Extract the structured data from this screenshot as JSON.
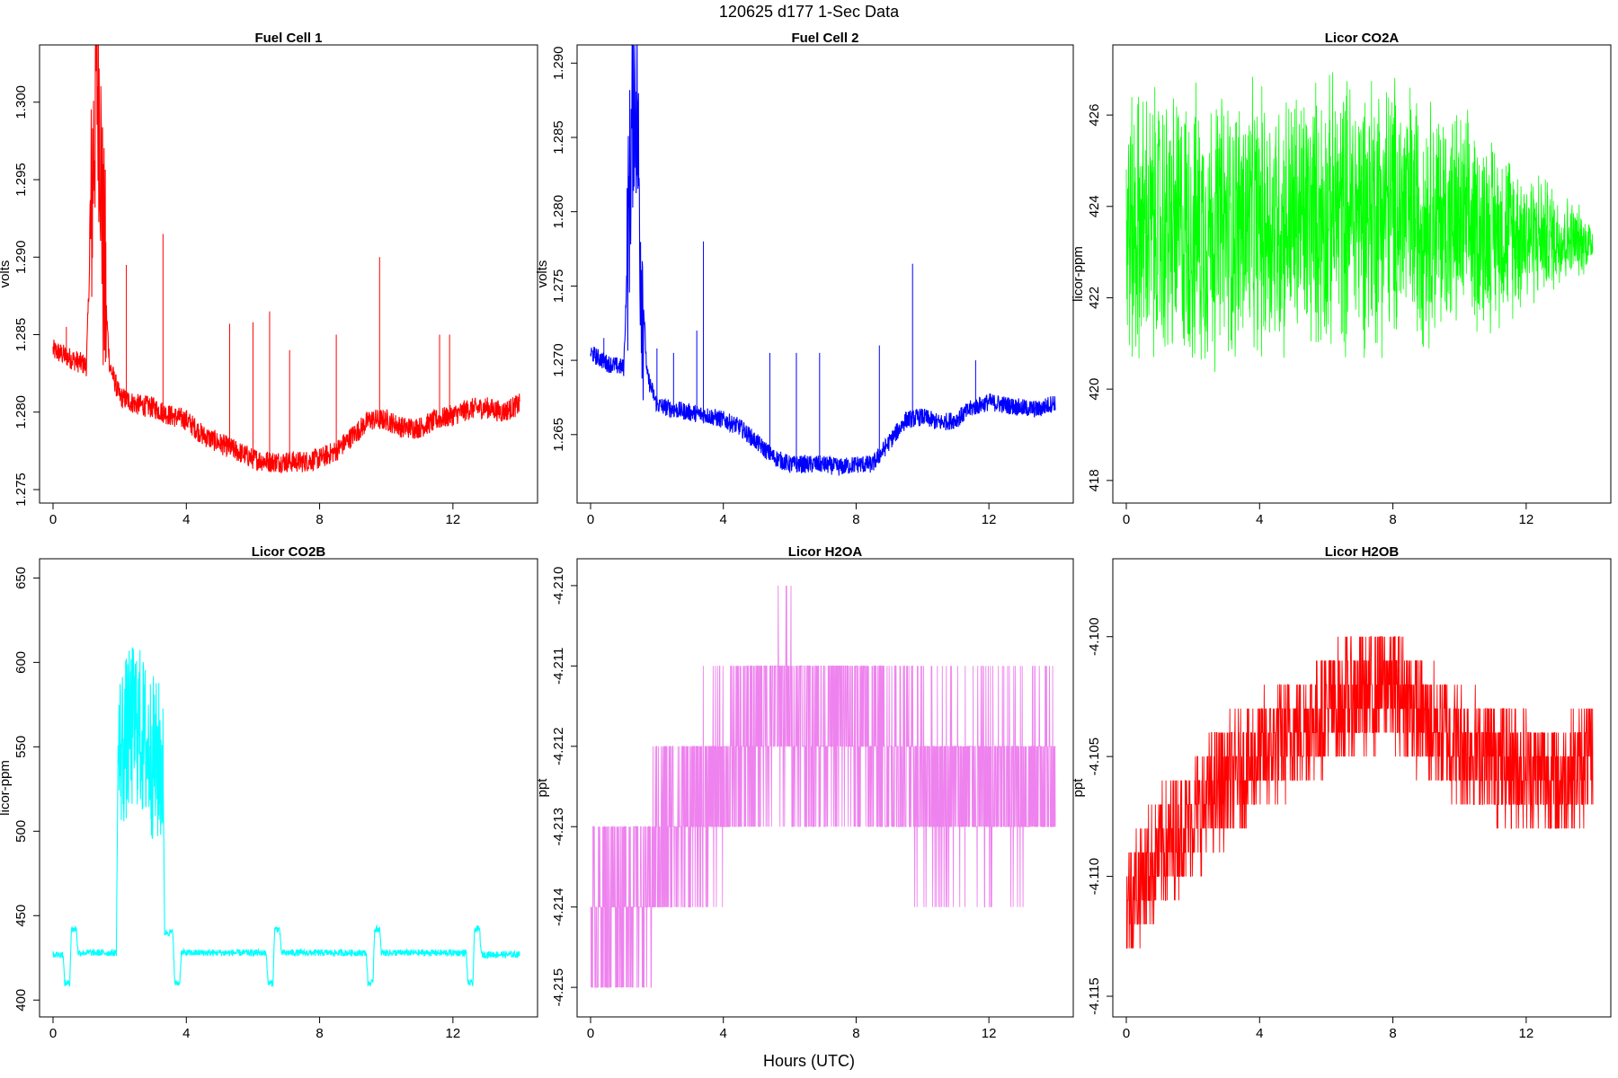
{
  "figure": {
    "title": "120625   d177   1-Sec Data",
    "xlabel": "Hours (UTC)"
  },
  "chart_data": [
    {
      "type": "line",
      "title": "Fuel Cell 1",
      "xlabel": "",
      "ylabel": "volts",
      "color": "#ff0000",
      "xlim": [
        0,
        14
      ],
      "ylim": [
        1.275,
        1.303
      ],
      "xticks": [
        0,
        4,
        8,
        12
      ],
      "yticks": [
        1.275,
        1.28,
        1.285,
        1.29,
        1.295,
        1.3
      ],
      "ytick_labels": [
        "1.275",
        "1.280",
        "1.285",
        "1.290",
        "1.295",
        "1.300"
      ],
      "series": [
        {
          "x": [
            0,
            0.5,
            1.0,
            1.2,
            1.3,
            1.4,
            1.5,
            1.7,
            2.0,
            2.5,
            3.0,
            3.5,
            4.0,
            4.5,
            5.0,
            5.5,
            6.0,
            6.5,
            7.0,
            7.5,
            8.0,
            8.5,
            9.0,
            9.5,
            10.0,
            10.5,
            11.0,
            11.5,
            12.0,
            12.5,
            13.0,
            13.5,
            14.0
          ],
          "y": [
            1.284,
            1.2835,
            1.283,
            1.296,
            1.302,
            1.3,
            1.29,
            1.283,
            1.281,
            1.2805,
            1.2803,
            1.2798,
            1.2795,
            1.2785,
            1.278,
            1.2775,
            1.277,
            1.2768,
            1.2768,
            1.2768,
            1.277,
            1.2775,
            1.2785,
            1.2795,
            1.2795,
            1.279,
            1.279,
            1.2795,
            1.2798,
            1.2802,
            1.2803,
            1.28,
            1.2805
          ],
          "noise": 0.0007
        }
      ],
      "spikes": [
        {
          "x": 0.4,
          "y": 1.2855
        },
        {
          "x": 2.2,
          "y": 1.2895
        },
        {
          "x": 3.3,
          "y": 1.2915
        },
        {
          "x": 5.3,
          "y": 1.2857
        },
        {
          "x": 6.0,
          "y": 1.2858
        },
        {
          "x": 6.5,
          "y": 1.2865
        },
        {
          "x": 7.1,
          "y": 1.284
        },
        {
          "x": 8.5,
          "y": 1.285
        },
        {
          "x": 9.8,
          "y": 1.29
        },
        {
          "x": 11.6,
          "y": 1.285
        },
        {
          "x": 11.9,
          "y": 1.285
        }
      ]
    },
    {
      "type": "line",
      "title": "Fuel Cell 2",
      "xlabel": "",
      "ylabel": "volts",
      "color": "#0000ff",
      "xlim": [
        0,
        14
      ],
      "ylim": [
        1.2613,
        1.2905
      ],
      "xticks": [
        0,
        4,
        8,
        12
      ],
      "yticks": [
        1.265,
        1.27,
        1.275,
        1.28,
        1.285,
        1.29
      ],
      "ytick_labels": [
        "1.265",
        "1.270",
        "1.275",
        "1.280",
        "1.285",
        "1.290"
      ],
      "series": [
        {
          "x": [
            0,
            0.5,
            1.0,
            1.2,
            1.3,
            1.4,
            1.5,
            1.7,
            2.0,
            2.5,
            3.0,
            3.5,
            4.0,
            4.5,
            5.0,
            5.5,
            6.0,
            6.5,
            7.0,
            7.5,
            8.0,
            8.5,
            9.0,
            9.5,
            10.0,
            10.5,
            11.0,
            11.5,
            12.0,
            12.5,
            13.0,
            13.5,
            14.0
          ],
          "y": [
            1.2705,
            1.2698,
            1.2695,
            1.283,
            1.2885,
            1.287,
            1.278,
            1.269,
            1.267,
            1.2667,
            1.2665,
            1.2663,
            1.266,
            1.2655,
            1.2645,
            1.2635,
            1.263,
            1.263,
            1.263,
            1.2628,
            1.263,
            1.263,
            1.2645,
            1.266,
            1.2662,
            1.2658,
            1.266,
            1.2668,
            1.2672,
            1.267,
            1.2668,
            1.2667,
            1.2672
          ],
          "noise": 0.0006
        }
      ],
      "spikes": [
        {
          "x": 0.4,
          "y": 1.2715
        },
        {
          "x": 2.0,
          "y": 1.2708
        },
        {
          "x": 2.5,
          "y": 1.2705
        },
        {
          "x": 3.2,
          "y": 1.272
        },
        {
          "x": 3.4,
          "y": 1.278
        },
        {
          "x": 5.4,
          "y": 1.2705
        },
        {
          "x": 6.2,
          "y": 1.2705
        },
        {
          "x": 6.9,
          "y": 1.2705
        },
        {
          "x": 8.7,
          "y": 1.271
        },
        {
          "x": 9.7,
          "y": 1.2765
        },
        {
          "x": 11.6,
          "y": 1.27
        }
      ]
    },
    {
      "type": "line",
      "title": "Licor CO2A",
      "xlabel": "",
      "ylabel": "licor-ppm",
      "color": "#00ff00",
      "xlim": [
        0,
        14
      ],
      "ylim": [
        417.8,
        427.3
      ],
      "xticks": [
        0,
        4,
        8,
        12
      ],
      "yticks": [
        418,
        420,
        422,
        424,
        426
      ],
      "ytick_labels": [
        "418",
        "420",
        "422",
        "424",
        "426"
      ],
      "series": [
        {
          "x": [
            0,
            2,
            4,
            6,
            7.5,
            9,
            10,
            11,
            12,
            13,
            14
          ],
          "y": [
            423.5,
            423.5,
            423.6,
            423.8,
            424.0,
            423.8,
            423.6,
            423.5,
            423.4,
            423.3,
            423.2
          ],
          "spread": [
            5.0,
            5.0,
            4.8,
            4.8,
            5.0,
            4.5,
            4.0,
            3.4,
            2.6,
            1.8,
            0.9
          ]
        }
      ]
    },
    {
      "type": "line",
      "title": "Licor CO2B",
      "xlabel": "",
      "ylabel": "licor-ppm",
      "color": "#00ffff",
      "xlim": [
        0,
        14
      ],
      "ylim": [
        398,
        655
      ],
      "xticks": [
        0,
        4,
        8,
        12
      ],
      "yticks": [
        400,
        450,
        500,
        550,
        600,
        650
      ],
      "ytick_labels": [
        "400",
        "450",
        "500",
        "550",
        "600",
        "650"
      ],
      "series": [
        {
          "x": [
            0,
            0.3,
            0.35,
            0.5,
            0.55,
            0.7,
            0.75,
            1.9,
            1.95,
            2.2,
            2.5,
            2.8,
            3.1,
            3.3,
            3.35,
            3.6,
            3.65,
            3.8,
            3.85,
            6.4,
            6.45,
            6.6,
            6.65,
            6.8,
            6.85,
            9.4,
            9.45,
            9.6,
            9.65,
            9.8,
            9.85,
            12.4,
            12.45,
            12.6,
            12.65,
            12.8,
            12.85,
            14.0
          ],
          "y": [
            427,
            427,
            410,
            410,
            442,
            442,
            428,
            428,
            545,
            555,
            565,
            550,
            540,
            540,
            440,
            440,
            410,
            410,
            428,
            428,
            410,
            410,
            442,
            442,
            428,
            428,
            410,
            410,
            442,
            442,
            428,
            428,
            410,
            410,
            442,
            442,
            427,
            427
          ],
          "noise": 2
        }
      ]
    },
    {
      "type": "line",
      "title": "Licor H2OA",
      "xlabel": "",
      "ylabel": "ppt",
      "color": "#ee82ee",
      "xlim": [
        0,
        14
      ],
      "ylim": [
        -4.2152,
        -4.2098
      ],
      "xticks": [
        0,
        4,
        8,
        12
      ],
      "yticks": [
        -4.215,
        -4.214,
        -4.213,
        -4.212,
        -4.211,
        -4.21
      ],
      "ytick_labels": [
        "-4.215",
        "-4.214",
        "-4.213",
        "-4.212",
        "-4.211",
        "-4.210"
      ],
      "series": [
        {
          "x": [
            0,
            1.0,
            1.8,
            2.0,
            3.0,
            3.5,
            4.5,
            5.0,
            5.8,
            6.5,
            7.0,
            8.0,
            9.0,
            10.0,
            11.0,
            12.0,
            13.0,
            13.8
          ],
          "y": [
            -4.2142,
            -4.2138,
            -4.2138,
            -4.2132,
            -4.2128,
            -4.2126,
            -4.2122,
            -4.2118,
            -4.2115,
            -4.2118,
            -4.2117,
            -4.2118,
            -4.2122,
            -4.2125,
            -4.2125,
            -4.2125,
            -4.2125,
            -4.2123
          ],
          "quantum": 0.001
        }
      ]
    },
    {
      "type": "line",
      "title": "Licor H2OB",
      "xlabel": "",
      "ylabel": "ppt",
      "color": "#ff0000",
      "xlim": [
        0,
        14
      ],
      "ylim": [
        -4.1153,
        -4.0972
      ],
      "xticks": [
        0,
        4,
        8,
        12
      ],
      "yticks": [
        -4.115,
        -4.11,
        -4.105,
        -4.1
      ],
      "ytick_labels": [
        "-4.115",
        "-4.110",
        "-4.105",
        "-4.100"
      ],
      "series": [
        {
          "x": [
            0,
            1,
            2,
            3,
            4,
            5,
            6,
            7,
            8,
            9,
            10,
            11,
            12,
            13,
            14
          ],
          "y": [
            -4.111,
            -4.109,
            -4.1075,
            -4.106,
            -4.105,
            -4.104,
            -4.103,
            -4.1025,
            -4.102,
            -4.1035,
            -4.1045,
            -4.105,
            -4.1055,
            -4.106,
            -4.105
          ],
          "quantum": 0.001,
          "spread": 0.0025
        }
      ]
    }
  ]
}
